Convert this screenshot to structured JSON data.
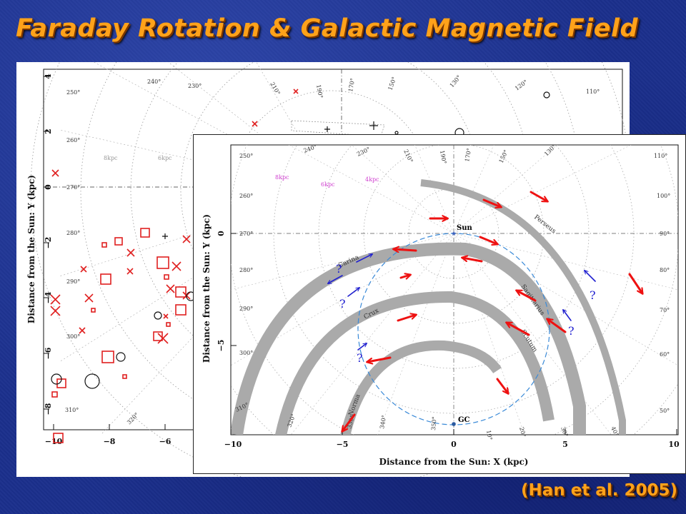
{
  "slide": {
    "title": "Faraday Rotation & Galactic Magnetic Field",
    "citation": "(Han et al. 2005)"
  },
  "colors": {
    "background": "#1b2f8c",
    "title": "#ffa21a",
    "field_arrow": "#ee1111",
    "uncertain_arrow": "#2020d0",
    "arm_band": "#aaaaaa",
    "circle": "#3a8ad8"
  },
  "back_plot": {
    "ylabel": "Distance from the Sun: Y (kpc)",
    "x_ticks": [
      "−10",
      "−8",
      "−6"
    ],
    "y_ticks": [
      "4",
      "2",
      "0",
      "−2",
      "−4",
      "−6",
      "−8"
    ],
    "distance_labels": [
      "8kpc",
      "6kpc"
    ],
    "longitude_labels": [
      "250°",
      "240°",
      "230°",
      "210°",
      "190°",
      "170°",
      "150°",
      "130°",
      "120°",
      "110°",
      "260°",
      "270°",
      "280°",
      "290°",
      "300°",
      "310°",
      "320°"
    ],
    "marker_legend": "red cross/square = negative RM, black plus/circle = positive RM"
  },
  "front_plot": {
    "xlabel": "Distance from the Sun: X (kpc)",
    "ylabel": "Distance from the Sun: Y (kpc)",
    "x_ticks": [
      "−10",
      "−5",
      "0",
      "5",
      "10"
    ],
    "y_ticks": [
      "0",
      "−5"
    ],
    "distance_labels": [
      "8kpc",
      "6kpc",
      "4kpc"
    ],
    "sun_label": "Sun",
    "gc_label": "GC",
    "question_mark": "?",
    "arms": [
      "Perseus",
      "Sagittarius",
      "Carina",
      "Crux",
      "Scutum",
      "Norma"
    ],
    "longitudes_top": [
      "250°",
      "240°",
      "230°",
      "210°",
      "190°",
      "170°",
      "150°",
      "130°",
      "110°"
    ],
    "longitudes_left": [
      "260°",
      "270°",
      "280°",
      "290°",
      "300°",
      "310°"
    ],
    "longitudes_right": [
      "100°",
      "90°",
      "80°",
      "70°",
      "60°",
      "50°"
    ],
    "longitudes_bottom": [
      "320°",
      "330°",
      "340°",
      "350°",
      "10°",
      "20°",
      "30°",
      "40°"
    ]
  }
}
